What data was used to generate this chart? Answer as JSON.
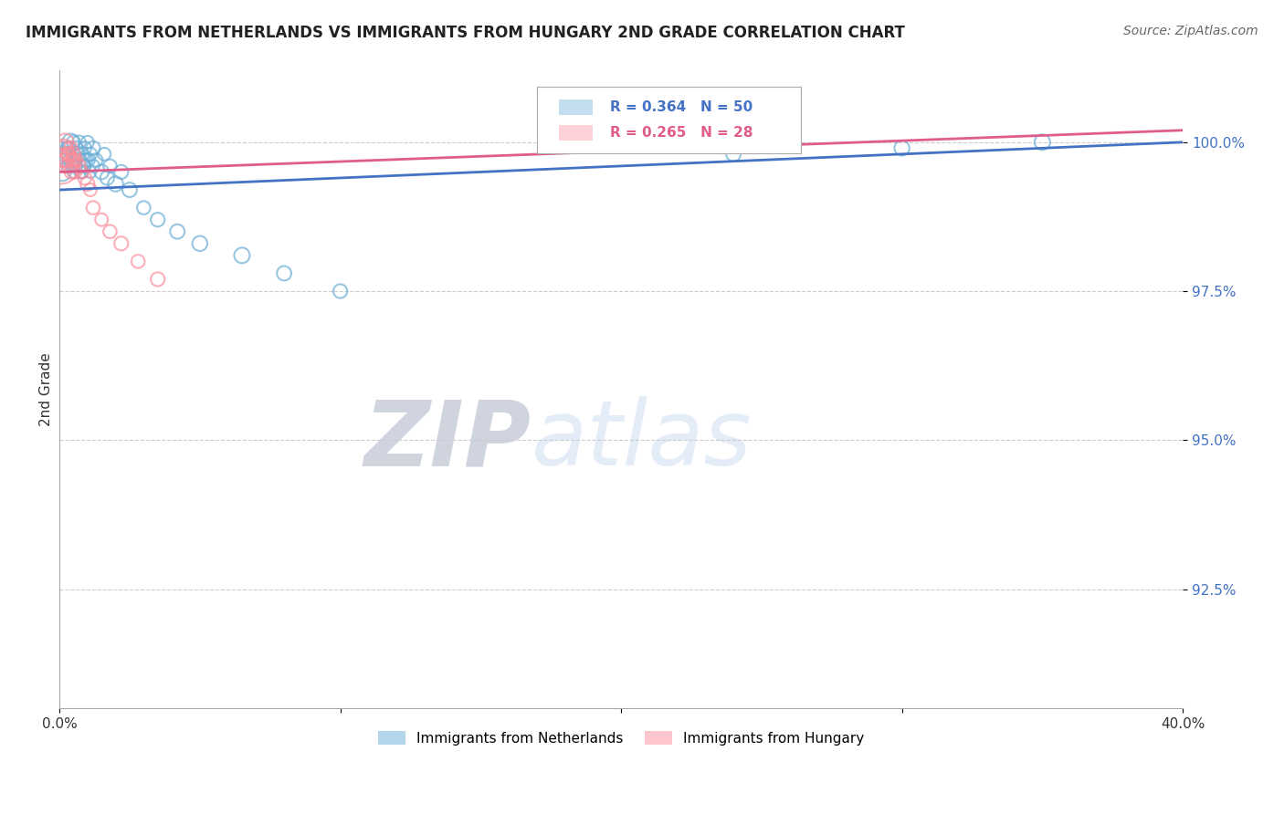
{
  "title": "IMMIGRANTS FROM NETHERLANDS VS IMMIGRANTS FROM HUNGARY 2ND GRADE CORRELATION CHART",
  "source": "Source: ZipAtlas.com",
  "ylabel": "2nd Grade",
  "legend_blue_r": "R = 0.364",
  "legend_blue_n": "N = 50",
  "legend_pink_r": "R = 0.265",
  "legend_pink_n": "N = 28",
  "blue_color": "#6baed6",
  "pink_color": "#fc8d9a",
  "blue_line_color": "#4472c4",
  "pink_line_color": "#e05c8a",
  "watermark_zip": "ZIP",
  "watermark_atlas": "atlas",
  "blue_scatter_x": [
    0.1,
    0.2,
    0.3,
    0.3,
    0.4,
    0.4,
    0.5,
    0.5,
    0.5,
    0.6,
    0.6,
    0.7,
    0.7,
    0.8,
    0.8,
    0.9,
    0.9,
    1.0,
    1.0,
    1.1,
    1.1,
    1.2,
    1.2,
    1.3,
    1.5,
    1.6,
    1.7,
    1.8,
    2.0,
    2.2,
    2.5,
    3.0,
    3.5,
    4.2,
    5.0,
    6.5,
    8.0,
    10.0,
    24.0,
    30.0,
    35.0,
    0.15,
    0.25,
    0.35,
    0.45,
    0.55,
    0.65,
    0.75,
    0.85,
    0.95
  ],
  "blue_scatter_y": [
    99.5,
    99.8,
    99.9,
    99.6,
    100.0,
    99.7,
    99.8,
    100.0,
    99.5,
    99.9,
    99.6,
    99.7,
    100.0,
    99.8,
    99.5,
    99.9,
    99.6,
    99.7,
    100.0,
    99.8,
    99.5,
    99.6,
    99.9,
    99.7,
    99.5,
    99.8,
    99.4,
    99.6,
    99.3,
    99.5,
    99.2,
    98.9,
    98.7,
    98.5,
    98.3,
    98.1,
    97.8,
    97.5,
    99.8,
    99.9,
    100.0,
    99.7,
    99.8,
    99.9,
    99.6,
    99.7,
    99.8,
    99.5,
    99.6,
    99.7
  ],
  "blue_scatter_size": [
    200,
    150,
    120,
    100,
    180,
    140,
    130,
    110,
    90,
    120,
    100,
    130,
    110,
    120,
    100,
    110,
    90,
    130,
    100,
    110,
    90,
    100,
    120,
    110,
    130,
    100,
    120,
    110,
    140,
    120,
    130,
    110,
    120,
    130,
    140,
    150,
    130,
    120,
    130,
    140,
    150,
    100,
    110,
    120,
    100,
    110,
    120,
    100,
    110,
    100
  ],
  "pink_scatter_x": [
    0.05,
    0.1,
    0.15,
    0.2,
    0.25,
    0.3,
    0.35,
    0.4,
    0.45,
    0.5,
    0.55,
    0.6,
    0.7,
    0.8,
    0.9,
    1.0,
    1.1,
    1.2,
    1.5,
    1.8,
    2.2,
    2.8,
    3.5,
    0.12,
    0.22,
    0.32,
    0.42,
    0.52
  ],
  "pink_scatter_y": [
    99.6,
    99.8,
    99.9,
    100.0,
    99.7,
    99.8,
    99.6,
    99.9,
    99.7,
    99.8,
    99.5,
    99.7,
    99.6,
    99.5,
    99.4,
    99.3,
    99.2,
    98.9,
    98.7,
    98.5,
    98.3,
    98.0,
    97.7,
    99.7,
    99.6,
    99.8,
    99.5,
    99.7
  ],
  "pink_scatter_size": [
    800,
    400,
    200,
    180,
    150,
    130,
    120,
    110,
    100,
    120,
    110,
    100,
    110,
    100,
    110,
    120,
    100,
    110,
    100,
    110,
    120,
    110,
    120,
    100,
    110,
    100,
    110,
    100
  ],
  "blue_trendline_x0": 0.0,
  "blue_trendline_y0": 99.2,
  "blue_trendline_x1": 40.0,
  "blue_trendline_y1": 100.0,
  "pink_trendline_x0": 0.0,
  "pink_trendline_y0": 99.5,
  "pink_trendline_x1": 40.0,
  "pink_trendline_y1": 100.2,
  "xlim": [
    0.0,
    40.0
  ],
  "ylim_bottom": 90.5,
  "ylim_top": 101.2,
  "y_tick_positions": [
    92.5,
    95.0,
    97.5,
    100.0
  ],
  "y_tick_labels": [
    "92.5%",
    "95.0%",
    "97.5%",
    "100.0%"
  ],
  "figsize": [
    14.06,
    8.92
  ]
}
